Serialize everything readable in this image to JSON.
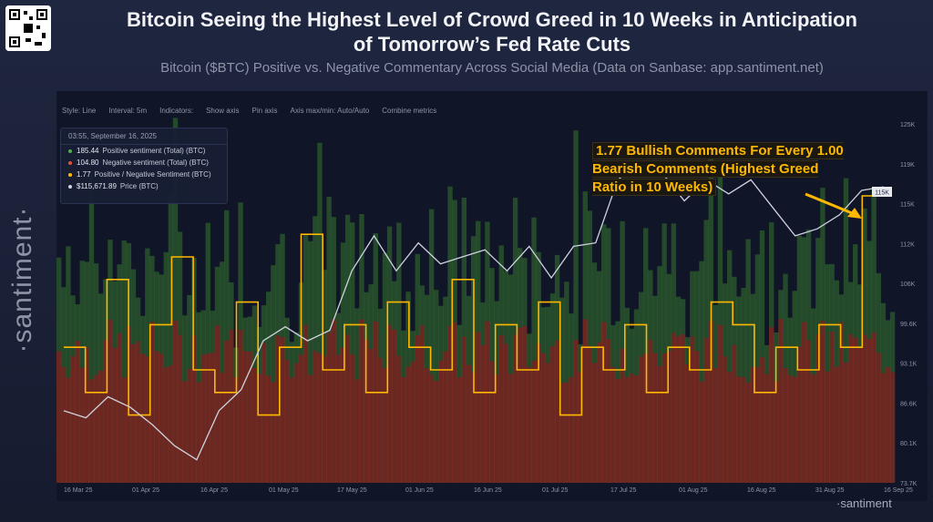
{
  "header": {
    "title": "Bitcoin Seeing the Highest Level of Crowd Greed in 10 Weeks in Anticipation of Tomorrow’s Fed Rate Cuts",
    "subtitle": "Bitcoin ($BTC) Positive vs. Negative Commentary Across Social Media (Data on Sanbase: app.santiment.net)"
  },
  "brand": {
    "vertical": "·santiment·",
    "footer": "·santiment"
  },
  "toolbar": {
    "style": "Style: Line",
    "interval": "Interval: 5m",
    "indicators": "Indicators:",
    "show_axis": "Show axis",
    "pin_axis": "Pin axis",
    "axis_maxmin": "Axis max/min: Auto/Auto",
    "combine": "Combine metrics"
  },
  "tooltip": {
    "timestamp": "03:55, September 16, 2025",
    "rows": [
      {
        "value": "185.44",
        "label": "Positive sentiment (Total) (BTC)",
        "color": "#4caf50"
      },
      {
        "value": "104.80",
        "label": "Negative sentiment (Total) (BTC)",
        "color": "#e0523b"
      },
      {
        "value": "1.77",
        "label": "Positive / Negative Sentiment (BTC)",
        "color": "#ffb800"
      },
      {
        "value": "$115,671.89",
        "label": "Price (BTC)",
        "color": "#cfd3de"
      }
    ]
  },
  "annotation": {
    "text": "1.77 Bullish Comments For Every 1.00 Bearish Comments (Highest Greed Ratio in 10 Weeks)"
  },
  "colors": {
    "positive": "#3e8a2e",
    "negative": "#b4391e",
    "ratio": "#ffb800",
    "price": "#cfd3de"
  },
  "chart_data": {
    "type": "line",
    "x_ticks": [
      "16 Mar 25",
      "01 Apr 25",
      "16 Apr 25",
      "01 May 25",
      "17 May 25",
      "01 Jun 25",
      "16 Jun 25",
      "01 Jul 25",
      "17 Jul 25",
      "01 Aug 25",
      "16 Aug 25",
      "31 Aug 25",
      "16 Sep 25"
    ],
    "y_ticks": [
      "125K",
      "119K",
      "115K",
      "112K",
      "106K",
      "99.6K",
      "93.1K",
      "86.6K",
      "80.1K",
      "73.7K"
    ],
    "ylim": [
      73700,
      125000
    ],
    "current_price_label": "115K",
    "series": [
      {
        "name": "Price (BTC)",
        "values": [
          84000,
          83000,
          86000,
          84500,
          82000,
          79000,
          77000,
          84000,
          87000,
          94000,
          96000,
          94000,
          95500,
          104000,
          109000,
          104000,
          108000,
          105000,
          106000,
          107000,
          104000,
          107500,
          103000,
          107500,
          108000,
          117000,
          119500,
          118000,
          114000,
          117000,
          115000,
          117000,
          113000,
          109000,
          110000,
          112000,
          115500,
          116000
        ]
      },
      {
        "name": "Positive / Negative Sentiment (BTC)",
        "values": [
          1.1,
          0.9,
          1.4,
          0.8,
          1.2,
          1.5,
          1.0,
          0.9,
          1.3,
          0.8,
          1.1,
          1.6,
          1.0,
          1.2,
          0.9,
          1.3,
          1.1,
          1.0,
          1.4,
          0.9,
          1.2,
          1.0,
          1.3,
          0.8,
          1.1,
          1.0,
          1.2,
          0.9,
          1.1,
          1.0,
          1.3,
          1.2,
          0.9,
          1.1,
          1.0,
          1.2,
          1.1,
          1.77
        ]
      }
    ]
  }
}
